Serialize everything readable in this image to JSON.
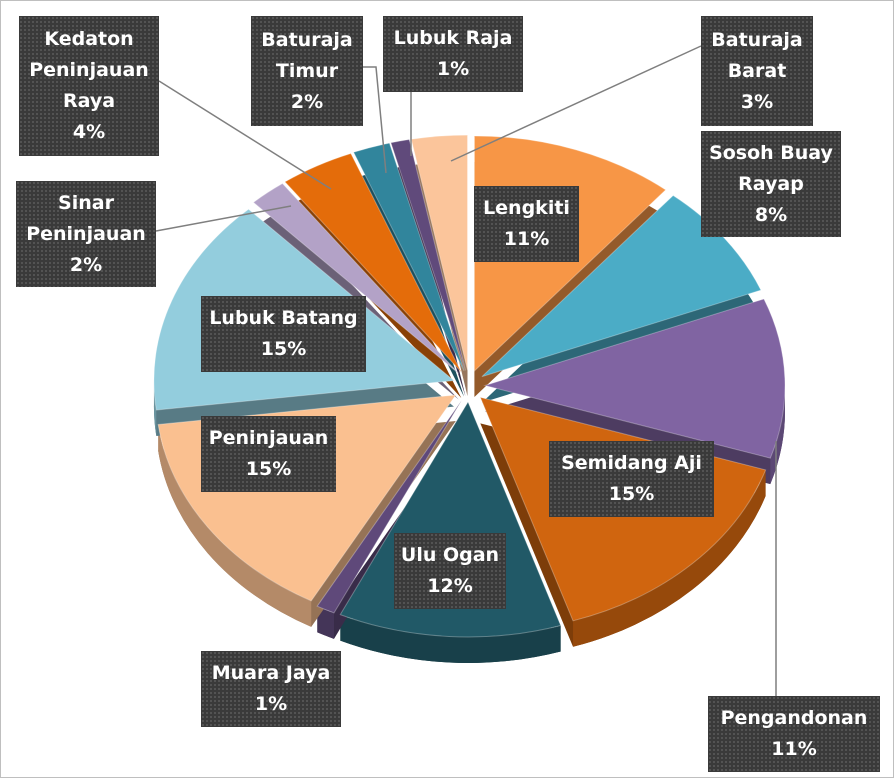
{
  "chart_data": {
    "type": "pie",
    "categories": [
      "Lengkiti",
      "Sosoh Buay Rayap",
      "Pengandonan",
      "Semidang Aji",
      "Ulu Ogan",
      "Muara Jaya",
      "Peninjauan",
      "Lubuk Batang",
      "Sinar Peninjauan",
      "Kedaton Peninjauan Raya",
      "Baturaja Timur",
      "Lubuk Raja",
      "Baturaja Barat"
    ],
    "values": [
      11,
      8,
      11,
      15,
      12,
      1,
      15,
      15,
      2,
      4,
      2,
      1,
      3
    ],
    "value_labels": [
      "11%",
      "8%",
      "11%",
      "15%",
      "12%",
      "1%",
      "15%",
      "15%",
      "2%",
      "4%",
      "2%",
      "1%",
      "3%"
    ],
    "colors": [
      "#f79646",
      "#4bacc6",
      "#8064a2",
      "#d0650f",
      "#215967",
      "#5f497a",
      "#fac090",
      "#93cddd",
      "#b3a2c7",
      "#e46c0a",
      "#31859c",
      "#604a7b",
      "#fbc59b"
    ]
  }
}
